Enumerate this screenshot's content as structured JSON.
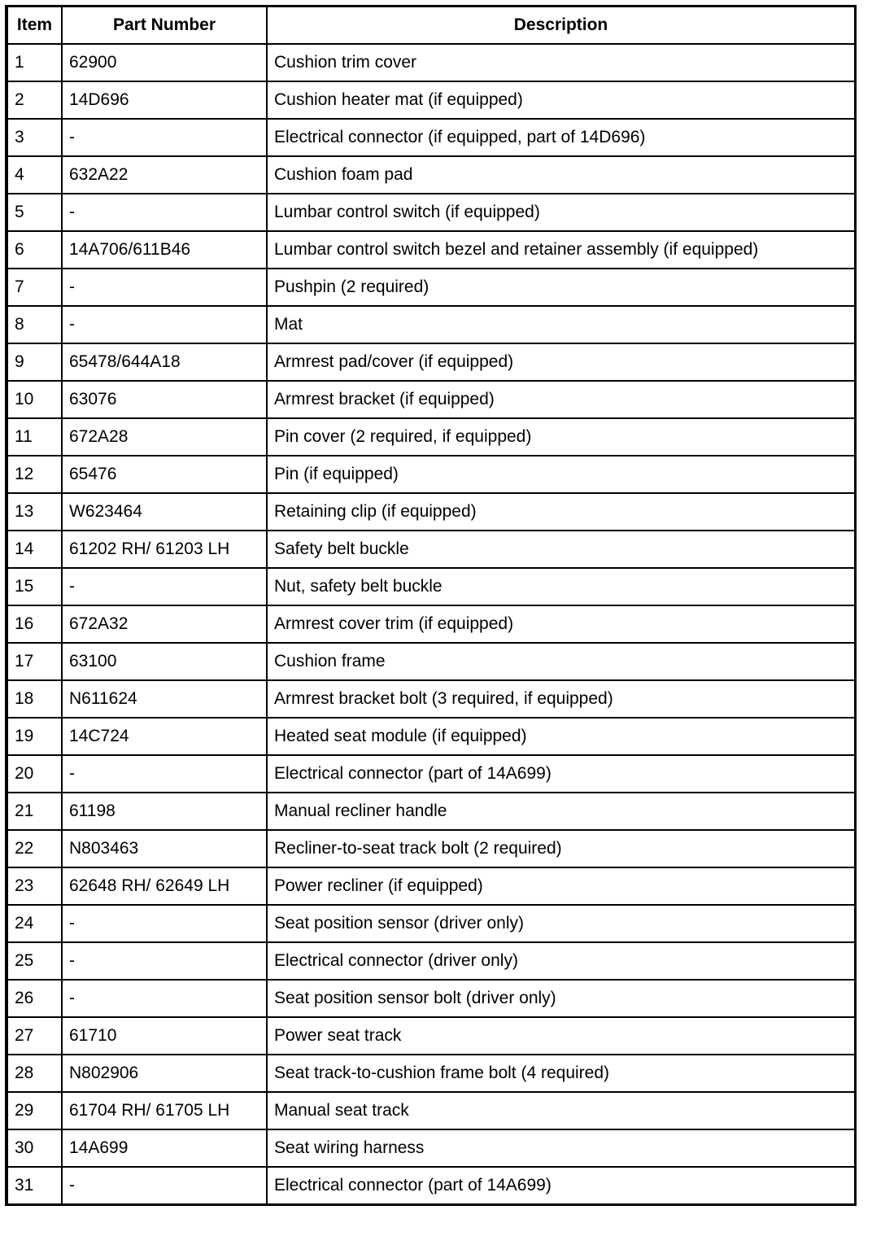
{
  "headers": {
    "item": "Item",
    "part_number": "Part Number",
    "description": "Description"
  },
  "rows": [
    [
      "1",
      "62900",
      "Cushion trim cover"
    ],
    [
      "2",
      "14D696",
      "Cushion heater mat (if equipped)"
    ],
    [
      "3",
      "-",
      "Electrical connector (if equipped, part of 14D696)"
    ],
    [
      "4",
      "632A22",
      "Cushion foam pad"
    ],
    [
      "5",
      "-",
      "Lumbar control switch (if equipped)"
    ],
    [
      "6",
      "14A706/611B46",
      "Lumbar control switch bezel and retainer assembly (if equipped)"
    ],
    [
      "7",
      "-",
      "Pushpin (2 required)"
    ],
    [
      "8",
      "-",
      "Mat"
    ],
    [
      "9",
      "65478/644A18",
      "Armrest pad/cover (if equipped)"
    ],
    [
      "10",
      "63076",
      "Armrest bracket (if equipped)"
    ],
    [
      "11",
      "672A28",
      "Pin cover (2 required, if equipped)"
    ],
    [
      "12",
      "65476",
      "Pin (if equipped)"
    ],
    [
      "13",
      "W623464",
      "Retaining clip (if equipped)"
    ],
    [
      "14",
      "61202 RH/ 61203 LH",
      "Safety belt buckle"
    ],
    [
      "15",
      "-",
      "Nut, safety belt buckle"
    ],
    [
      "16",
      "672A32",
      "Armrest cover trim (if equipped)"
    ],
    [
      "17",
      "63100",
      "Cushion frame"
    ],
    [
      "18",
      "N611624",
      "Armrest bracket bolt (3 required, if equipped)"
    ],
    [
      "19",
      "14C724",
      "Heated seat module (if equipped)"
    ],
    [
      "20",
      "-",
      "Electrical connector (part of 14A699)"
    ],
    [
      "21",
      "61198",
      "Manual recliner handle"
    ],
    [
      "22",
      "N803463",
      "Recliner-to-seat track bolt (2 required)"
    ],
    [
      "23",
      "62648 RH/ 62649 LH",
      "Power recliner (if equipped)"
    ],
    [
      "24",
      "-",
      "Seat position sensor (driver only)"
    ],
    [
      "25",
      "-",
      "Electrical connector (driver only)"
    ],
    [
      "26",
      "-",
      "Seat position sensor bolt (driver only)"
    ],
    [
      "27",
      "61710",
      "Power seat track"
    ],
    [
      "28",
      "N802906",
      "Seat track-to-cushion frame bolt (4 required)"
    ],
    [
      "29",
      "61704 RH/ 61705 LH",
      "Manual seat track"
    ],
    [
      "30",
      "14A699",
      "Seat wiring harness"
    ],
    [
      "31",
      "-",
      "Electrical connector (part of 14A699)"
    ]
  ]
}
